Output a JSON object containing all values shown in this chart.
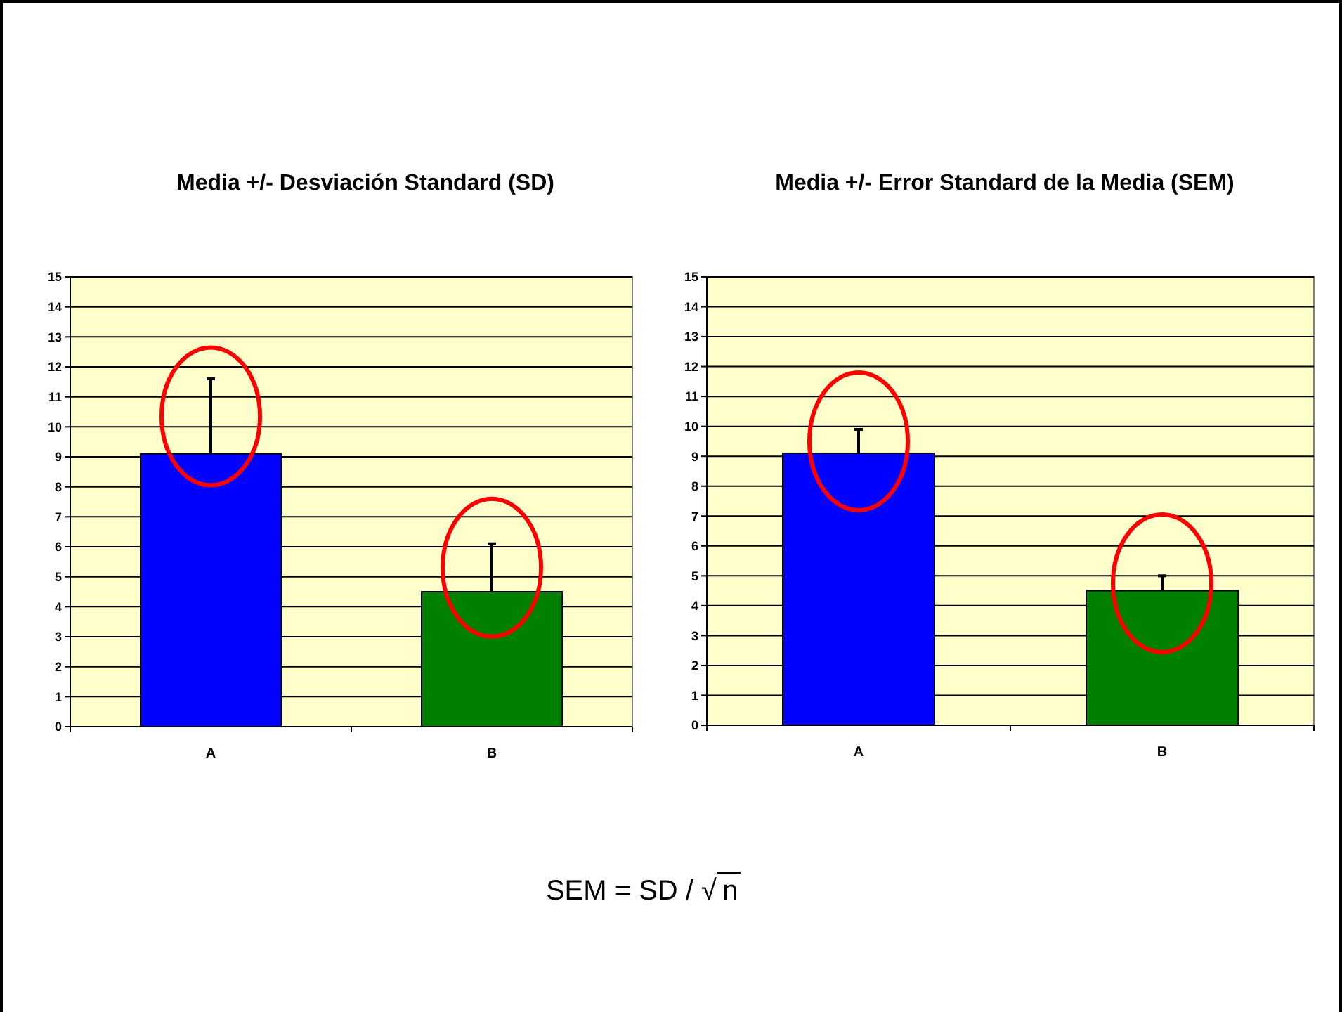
{
  "chart_data": [
    {
      "type": "bar",
      "title": "Media +/- Desviación Standard (SD)",
      "categories": [
        "A",
        "B"
      ],
      "values": [
        9.1,
        4.5
      ],
      "colors": [
        "#0000ff",
        "#008000"
      ],
      "errors": [
        [
          9.1,
          11.6
        ],
        [
          4.5,
          6.1
        ]
      ],
      "ylim": [
        0,
        15
      ],
      "yticks": [
        0,
        1,
        2,
        3,
        4,
        5,
        6,
        7,
        8,
        9,
        10,
        11,
        12,
        13,
        14,
        15
      ],
      "grid": "y"
    },
    {
      "type": "bar",
      "title": "Media +/- Error Standard de la Media (SEM)",
      "categories": [
        "A",
        "B"
      ],
      "values": [
        9.1,
        4.5
      ],
      "colors": [
        "#0000ff",
        "#008000"
      ],
      "errors": [
        [
          9.1,
          9.9
        ],
        [
          4.5,
          5.0
        ]
      ],
      "ylim": [
        0,
        15
      ],
      "yticks": [
        0,
        1,
        2,
        3,
        4,
        5,
        6,
        7,
        8,
        9,
        10,
        11,
        12,
        13,
        14,
        15
      ],
      "grid": "y",
      "annotations": [
        "SEM = SD / √n"
      ]
    }
  ]
}
